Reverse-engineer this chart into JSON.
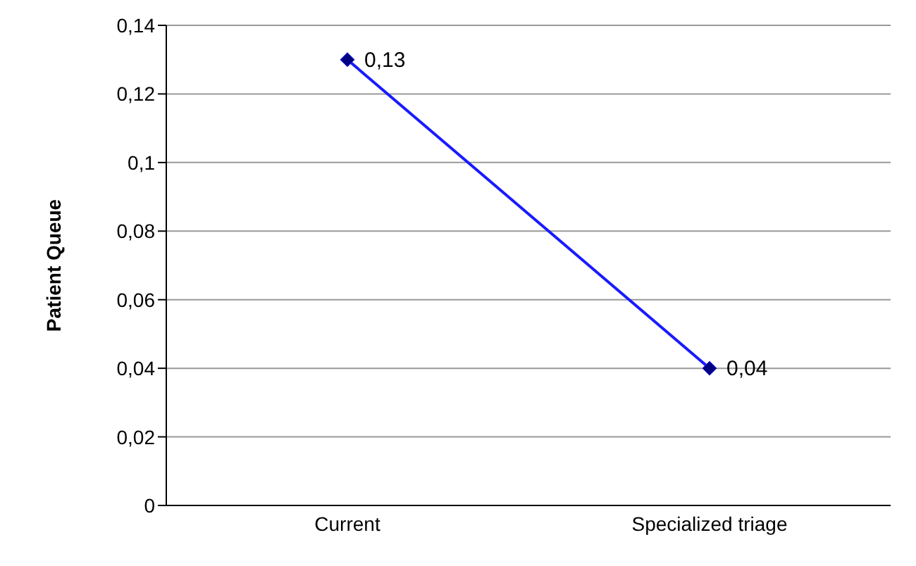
{
  "chart_data": {
    "type": "line",
    "ylabel": "Patient Queue",
    "categories": [
      "Current",
      "Specialized triage"
    ],
    "series": [
      {
        "color": "#1a1aff",
        "values": [
          0.13,
          0.04
        ],
        "value_labels": [
          "0,13",
          "0,04"
        ]
      }
    ],
    "ylim": [
      0,
      0.14
    ],
    "yticks": [
      0,
      {
        "value": 0.02,
        "label": "0,02"
      },
      {
        "value": 0.04,
        "label": "0,04"
      },
      {
        "value": 0.06,
        "label": "0,06"
      },
      {
        "value": 0.08,
        "label": "0,08"
      },
      {
        "value": 0.1,
        "label": "0,1"
      },
      {
        "value": 0.12,
        "label": "0,12"
      },
      {
        "value": 0.14,
        "label": "0,14"
      }
    ],
    "grid": "y",
    "marker": "diamond",
    "line_style": "solid",
    "legend": false
  }
}
